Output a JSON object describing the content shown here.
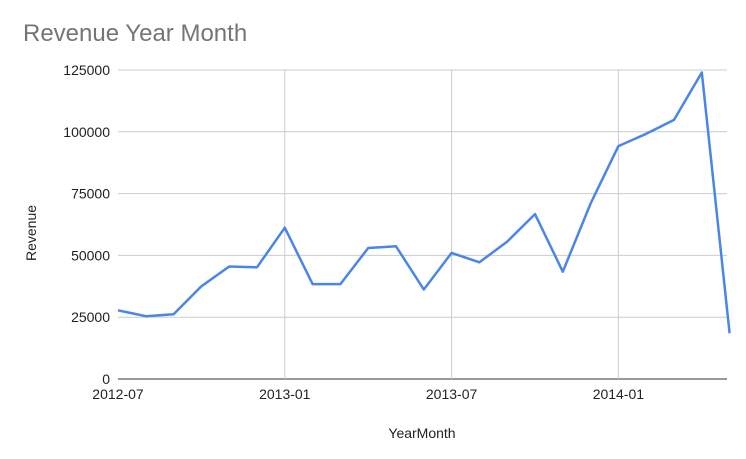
{
  "chart_data": {
    "type": "line",
    "title": "Revenue Year Month",
    "xlabel": "YearMonth",
    "ylabel": "Revenue",
    "x_tick_labels": [
      "2012-07",
      "2013-01",
      "2013-07",
      "2014-01"
    ],
    "y_tick_labels": [
      "0",
      "25000",
      "50000",
      "75000",
      "100000",
      "125000"
    ],
    "ylim": [
      0,
      125000
    ],
    "grid": true,
    "legend": "none",
    "series": [
      {
        "color": "#4a86e8",
        "x": [
          "2012-07",
          "2012-08",
          "2012-09",
          "2012-10",
          "2012-11",
          "2012-12",
          "2013-01",
          "2013-02",
          "2013-03",
          "2013-04",
          "2013-05",
          "2013-06",
          "2013-07",
          "2013-08",
          "2013-09",
          "2013-10",
          "2013-11",
          "2013-12",
          "2014-01",
          "2014-02",
          "2014-03",
          "2014-04",
          "2014-05"
        ],
        "values": [
          27800,
          25400,
          26200,
          37500,
          45500,
          45200,
          61200,
          38400,
          38400,
          53000,
          53700,
          36200,
          51000,
          47200,
          55600,
          66700,
          43400,
          71000,
          94200,
          99200,
          104800,
          124000,
          18500
        ]
      }
    ]
  }
}
